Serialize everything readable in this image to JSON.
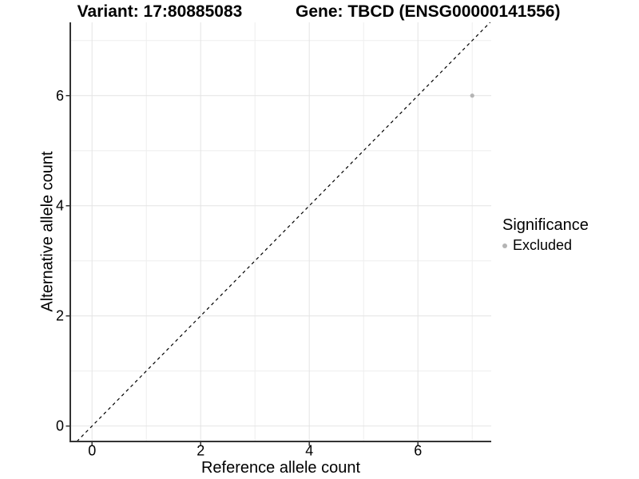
{
  "chart_data": {
    "type": "scatter",
    "title_left": "Variant: 17:80885083",
    "title_right": "Gene: TBCD (ENSG00000141556)",
    "xlabel": "Reference allele count",
    "ylabel": "Alternative allele count",
    "xlim": [
      -0.4,
      7.35
    ],
    "ylim": [
      -0.28,
      7.33
    ],
    "xticks": [
      0,
      2,
      4,
      6
    ],
    "yticks": [
      0,
      2,
      4,
      6
    ],
    "xgrid": [
      0,
      1,
      2,
      3,
      4,
      5,
      6,
      7
    ],
    "ygrid": [
      0,
      1,
      2,
      3,
      4,
      5,
      6,
      7
    ],
    "grid": true,
    "points": [
      {
        "x": 7,
        "y": 6,
        "series": "Excluded"
      }
    ],
    "reference_line": {
      "kind": "identity",
      "slope": 1,
      "intercept": 0,
      "style": "dashed"
    },
    "legend": {
      "title": "Significance",
      "position": "right",
      "items": [
        {
          "label": "Excluded",
          "color": "#b4b4b4"
        }
      ]
    }
  },
  "colors": {
    "background": "#ffffff",
    "axis": "#333333",
    "grid_major": "#e4e4e4",
    "grid_minor": "#eeeeee",
    "reference_line": "#000000",
    "point": "#b4b4b4",
    "text": "#000000"
  }
}
